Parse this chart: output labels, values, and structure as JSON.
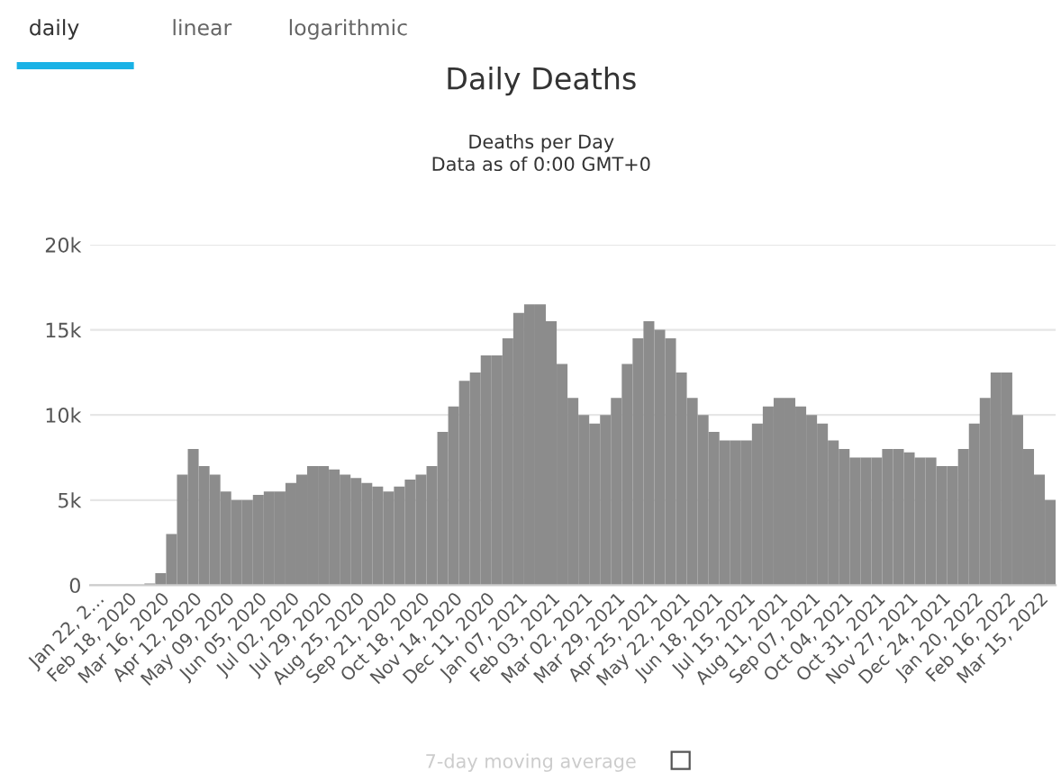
{
  "chart_data": {
    "type": "bar",
    "title": "Daily Deaths",
    "subtitle": "Deaths per Day\nData as of 0:00 GMT+0",
    "annotations": [
      "daily",
      "linear",
      "logarithmic",
      "7-day moving average"
    ],
    "categories": [
      "Jan 22, 2…",
      null,
      null,
      "Feb 18, 2020",
      null,
      null,
      "Mar 16, 2020",
      null,
      null,
      "Apr 12, 2020",
      null,
      null,
      "May 09, 2020",
      null,
      null,
      "Jun 05, 2020",
      null,
      null,
      "Jul 02, 2020",
      null,
      null,
      "Jul 29, 2020",
      null,
      null,
      "Aug 25, 2020",
      null,
      null,
      "Sep 21, 2020",
      null,
      null,
      "Oct 18, 2020",
      null,
      null,
      "Nov 14, 2020",
      null,
      null,
      "Dec 11, 2020",
      null,
      null,
      "Jan 07, 2021",
      null,
      null,
      "Feb 03, 2021",
      null,
      null,
      "Mar 02, 2021",
      null,
      null,
      "Mar 29, 2021",
      null,
      null,
      "Apr 25, 2021",
      null,
      null,
      "May 22, 2021",
      null,
      null,
      "Jun 18, 2021",
      null,
      null,
      "Jul 15, 2021",
      null,
      null,
      "Aug 11, 2021",
      null,
      null,
      "Sep 07, 2021",
      null,
      null,
      "Oct 04, 2021",
      null,
      null,
      "Oct 31, 2021",
      null,
      null,
      "Nov 27, 2021",
      null,
      null,
      "Dec 24, 2021",
      null,
      null,
      "Jan 20, 2022",
      null,
      null,
      "Feb 16, 2022",
      null,
      null,
      "Mar 15, 2022",
      null
    ],
    "values": [
      0,
      0,
      0,
      0,
      0,
      100,
      700,
      3000,
      6500,
      8000,
      7000,
      6500,
      5500,
      5000,
      5000,
      5300,
      5500,
      5500,
      6000,
      6500,
      7000,
      7000,
      6800,
      6500,
      6300,
      6000,
      5800,
      5500,
      5800,
      6200,
      6500,
      7000,
      9000,
      10500,
      12000,
      12500,
      13500,
      13500,
      14500,
      16000,
      16500,
      16500,
      15500,
      13000,
      11000,
      10000,
      9500,
      10000,
      11000,
      13000,
      14500,
      15500,
      15000,
      14500,
      12500,
      11000,
      10000,
      9000,
      8500,
      8500,
      8500,
      9500,
      10500,
      11000,
      11000,
      10500,
      10000,
      9500,
      8500,
      8000,
      7500,
      7500,
      7500,
      8000,
      8000,
      7800,
      7500,
      7500,
      7000,
      7000,
      8000,
      9500,
      11000,
      12500,
      12500,
      10000,
      8000,
      6500,
      5000
    ],
    "color": "#8c8c8c",
    "ylim": [
      0,
      20000
    ],
    "yticks": [
      0,
      {
        "value": 5000,
        "label": "5k"
      },
      {
        "value": 10000,
        "label": "10k"
      },
      {
        "value": 15000,
        "label": "15k"
      },
      {
        "value": 20000,
        "label": "20k"
      }
    ],
    "grid": "y",
    "legend": false
  }
}
